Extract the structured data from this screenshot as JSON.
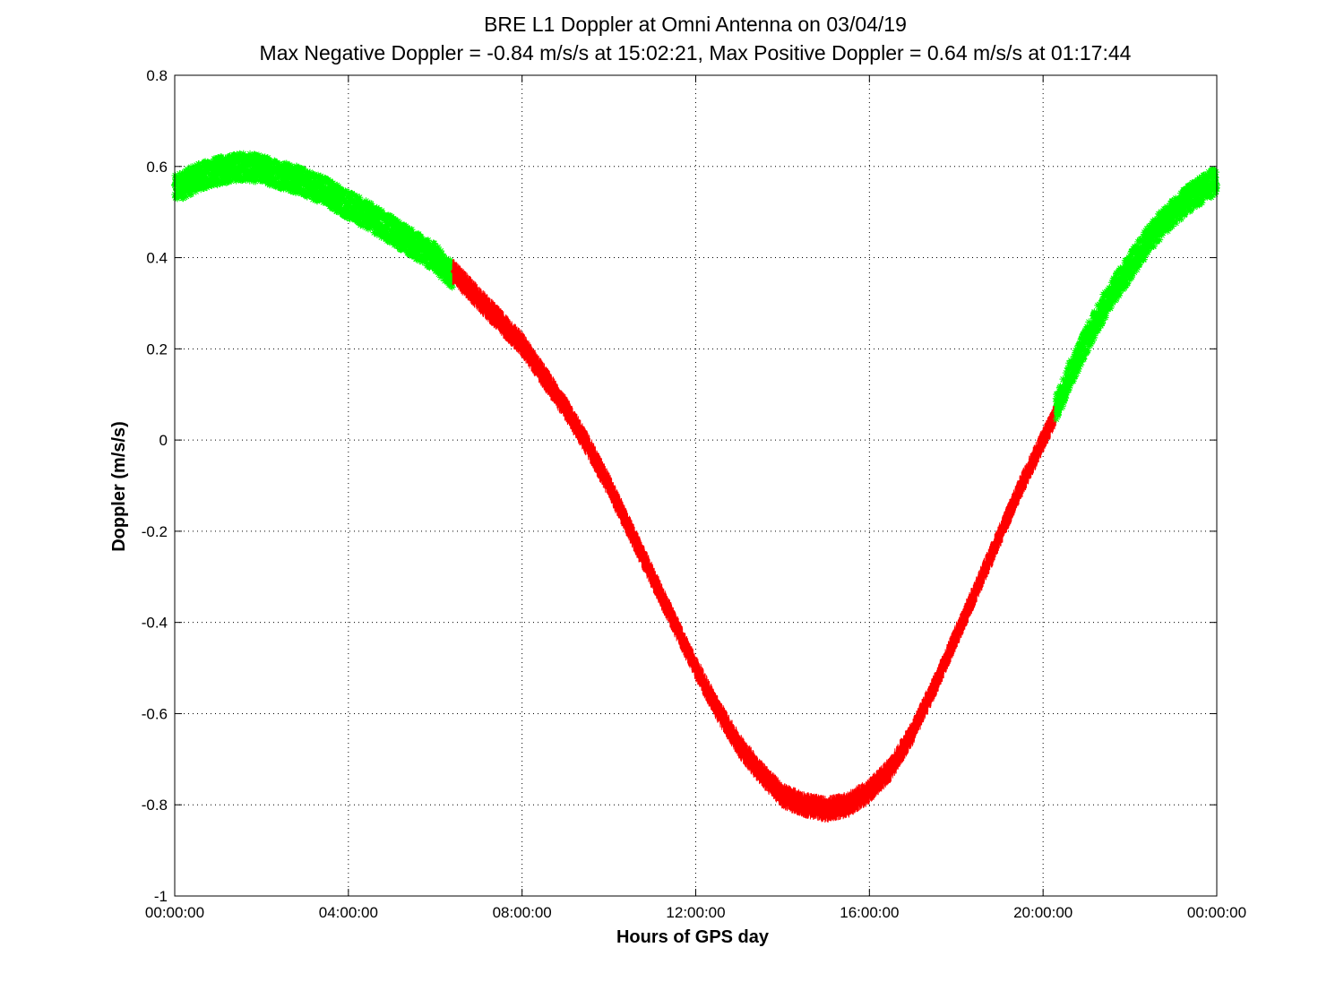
{
  "chart_data": {
    "type": "scatter",
    "title": "BRE  L1 Doppler at Omni Antenna on 03/04/19",
    "subtitle": "Max Negative Doppler = -0.84 m/s/s  at 15:02:21,   Max Positive Doppler = 0.64 m/s/s  at 01:17:44",
    "xlabel": "Hours of GPS day",
    "ylabel": "Doppler (m/s/s)",
    "xlim": [
      0,
      24
    ],
    "ylim": [
      -1,
      0.8
    ],
    "x_ticks": [
      0,
      4,
      8,
      12,
      16,
      20,
      24
    ],
    "x_tick_labels": [
      "00:00:00",
      "04:00:00",
      "08:00:00",
      "12:00:00",
      "16:00:00",
      "20:00:00",
      "00:00:00"
    ],
    "y_ticks": [
      -1,
      -0.8,
      -0.6,
      -0.4,
      -0.2,
      0,
      0.2,
      0.4,
      0.6,
      0.8
    ],
    "y_tick_labels": [
      "-1",
      "-0.8",
      "-0.6",
      "-0.4",
      "-0.2",
      "0",
      "0.2",
      "0.4",
      "0.6",
      "0.8"
    ],
    "grid": true,
    "noise_amplitude": 0.03,
    "series": [
      {
        "color": "#00ff00",
        "marker": "asterisk",
        "x": [
          0,
          0.5,
          1.0,
          1.5,
          2.0,
          2.5,
          3.0,
          3.5,
          4.0,
          4.5,
          5.0,
          5.5,
          6.0,
          6.4
        ],
        "y": [
          0.55,
          0.575,
          0.59,
          0.6,
          0.595,
          0.58,
          0.565,
          0.545,
          0.515,
          0.49,
          0.46,
          0.43,
          0.4,
          0.36
        ]
      },
      {
        "color": "#ff0000",
        "marker": "line",
        "x": [
          6.4,
          7.0,
          7.5,
          8.0,
          8.5,
          9.0,
          9.5,
          10.0,
          10.5,
          11.0,
          11.5,
          12.0,
          12.5,
          13.0,
          13.5,
          14.0,
          14.5,
          15.0,
          15.5,
          16.0,
          16.5,
          17.0,
          17.5,
          18.0,
          18.5,
          19.0,
          19.5,
          20.0,
          20.3
        ],
        "y": [
          0.37,
          0.31,
          0.26,
          0.21,
          0.14,
          0.07,
          -0.01,
          -0.1,
          -0.2,
          -0.3,
          -0.4,
          -0.5,
          -0.59,
          -0.67,
          -0.73,
          -0.78,
          -0.8,
          -0.81,
          -0.8,
          -0.77,
          -0.72,
          -0.64,
          -0.54,
          -0.43,
          -0.32,
          -0.21,
          -0.1,
          0.0,
          0.06
        ]
      },
      {
        "color": "#00ff00",
        "marker": "asterisk",
        "x": [
          20.3,
          20.6,
          21.0,
          21.5,
          22.0,
          22.5,
          23.0,
          23.5,
          24.0
        ],
        "y": [
          0.07,
          0.14,
          0.22,
          0.31,
          0.38,
          0.45,
          0.5,
          0.54,
          0.57
        ]
      }
    ]
  }
}
